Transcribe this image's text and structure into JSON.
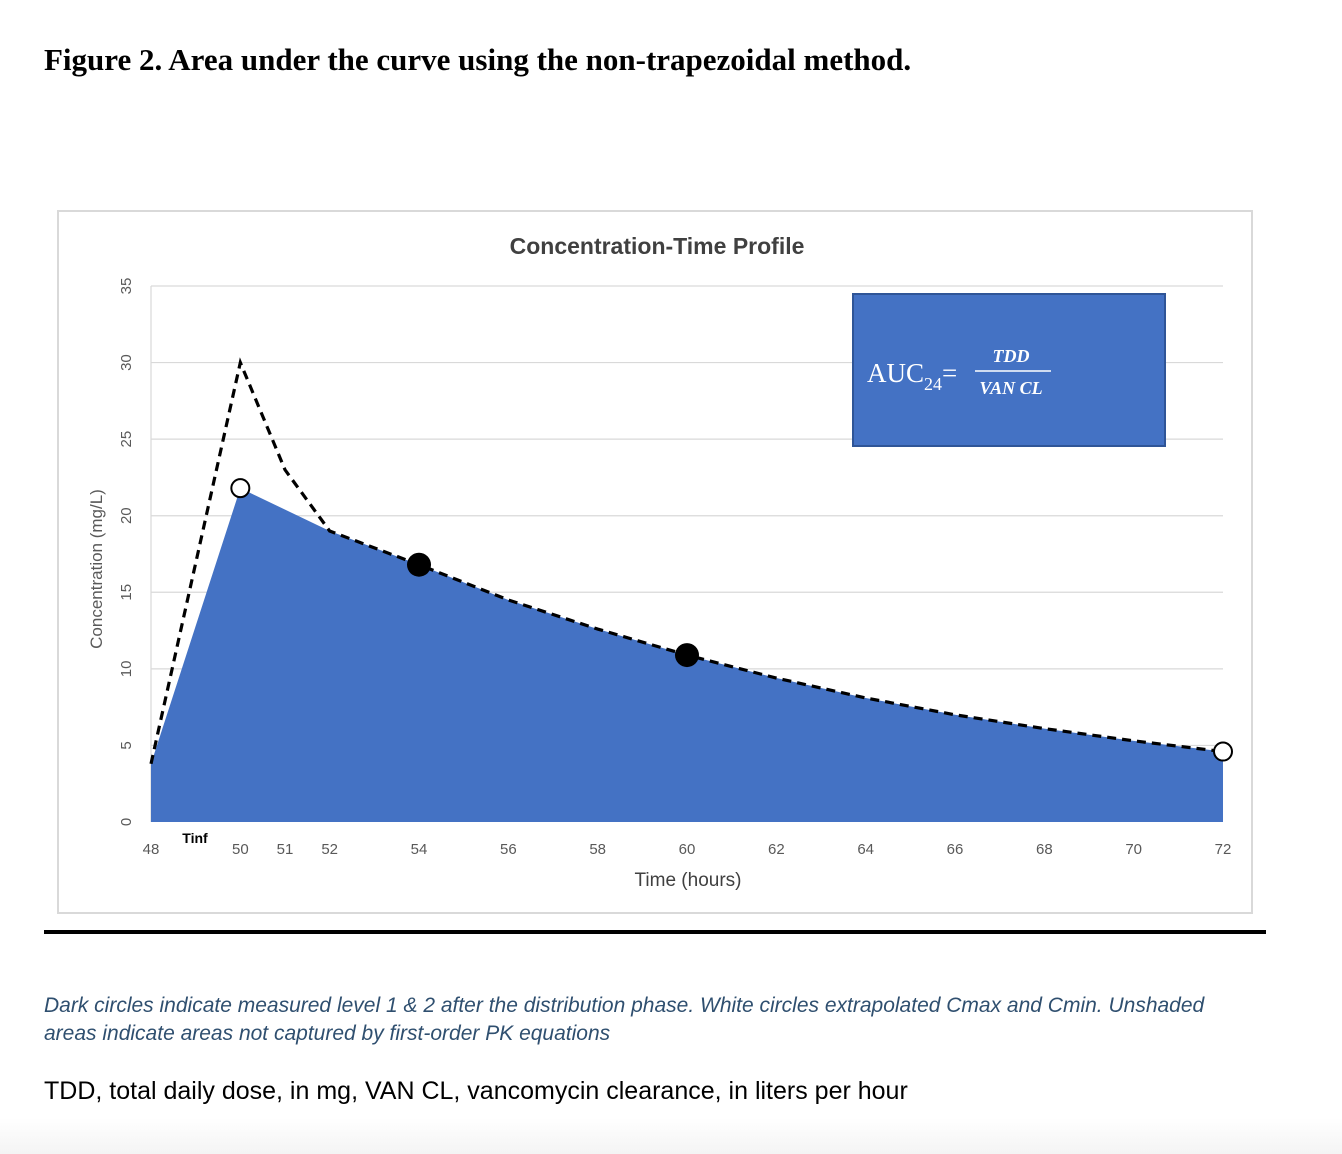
{
  "figure": {
    "title": "Figure 2. Area under the curve using the non-trapezoidal method.",
    "caption": " Dark circles indicate measured level 1 & 2 after the distribution phase. White circles extrapolated Cmax and Cmin. Unshaded areas indicate areas not captured by first-order PK equations",
    "footnote": "TDD, total daily dose, in mg, VAN CL, vancomycin clearance, in liters per hour"
  },
  "formula_box": {
    "lhs": "AUC",
    "subscript": "24",
    "equals": "=",
    "numerator": "TDD",
    "denominator": "VAN CL",
    "fill_color": "#4472c4"
  },
  "chart_data": {
    "type": "area",
    "title": "Concentration-Time Profile",
    "xlabel": "Time (hours)",
    "ylabel": "Concentration (mg/L)",
    "xlim": [
      48,
      72
    ],
    "ylim": [
      0,
      35
    ],
    "y_ticks": [
      0,
      5,
      10,
      15,
      20,
      25,
      30,
      35
    ],
    "x_ticks": [
      48,
      50,
      51,
      52,
      54,
      56,
      58,
      60,
      62,
      64,
      66,
      68,
      70,
      72
    ],
    "x_tick_labels": [
      "48",
      "50",
      "51",
      "52",
      "54",
      "56",
      "58",
      "60",
      "62",
      "64",
      "66",
      "68",
      "70",
      "72"
    ],
    "annotation": "Tinf",
    "grid": true,
    "colors": {
      "area": "#4472c4",
      "dashed_line": "#000000",
      "grid": "#d9d9d9"
    },
    "shaded_area": {
      "x": [
        48,
        50,
        52,
        54,
        56,
        58,
        60,
        62,
        64,
        66,
        68,
        70,
        72
      ],
      "y": [
        3.8,
        21.8,
        19.0,
        16.8,
        14.5,
        12.6,
        10.9,
        9.4,
        8.1,
        7.0,
        6.1,
        5.3,
        4.6
      ]
    },
    "dashed_line": {
      "x": [
        48,
        50,
        51,
        52,
        54,
        56,
        58,
        60,
        62,
        64,
        66,
        68,
        70,
        72
      ],
      "y": [
        3.8,
        30.0,
        23.0,
        19.0,
        16.8,
        14.5,
        12.6,
        10.9,
        9.4,
        8.1,
        7.0,
        6.1,
        5.3,
        4.6
      ]
    },
    "measured_points": [
      {
        "x": 54,
        "y": 16.8
      },
      {
        "x": 60,
        "y": 10.9
      }
    ],
    "extrapolated_points": [
      {
        "x": 50,
        "y": 21.8
      },
      {
        "x": 72,
        "y": 4.6
      }
    ]
  }
}
